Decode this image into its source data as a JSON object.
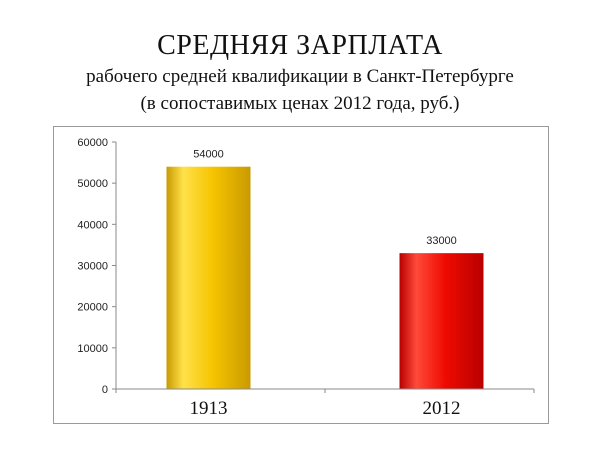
{
  "chart_data": {
    "type": "bar",
    "title": "СРЕДНЯЯ ЗАРПЛАТА",
    "subtitle_lines": [
      "рабочего средней квалификации в Санкт-Петербурге",
      "(в сопоставимых ценах 2012 года, руб.)"
    ],
    "categories": [
      "1913",
      "2012"
    ],
    "values": [
      54000,
      33000
    ],
    "data_labels": [
      "54000",
      "33000"
    ],
    "y_ticks": [
      "0",
      "10000",
      "20000",
      "30000",
      "40000",
      "50000",
      "60000"
    ],
    "ylim": [
      0,
      60000
    ],
    "grid": false,
    "legend": "none",
    "bar_colors": [
      {
        "light": "#ffe14a",
        "main": "#f6c400",
        "dark": "#c99a00"
      },
      {
        "light": "#ff4a3a",
        "main": "#ee0a00",
        "dark": "#b80000"
      }
    ]
  }
}
